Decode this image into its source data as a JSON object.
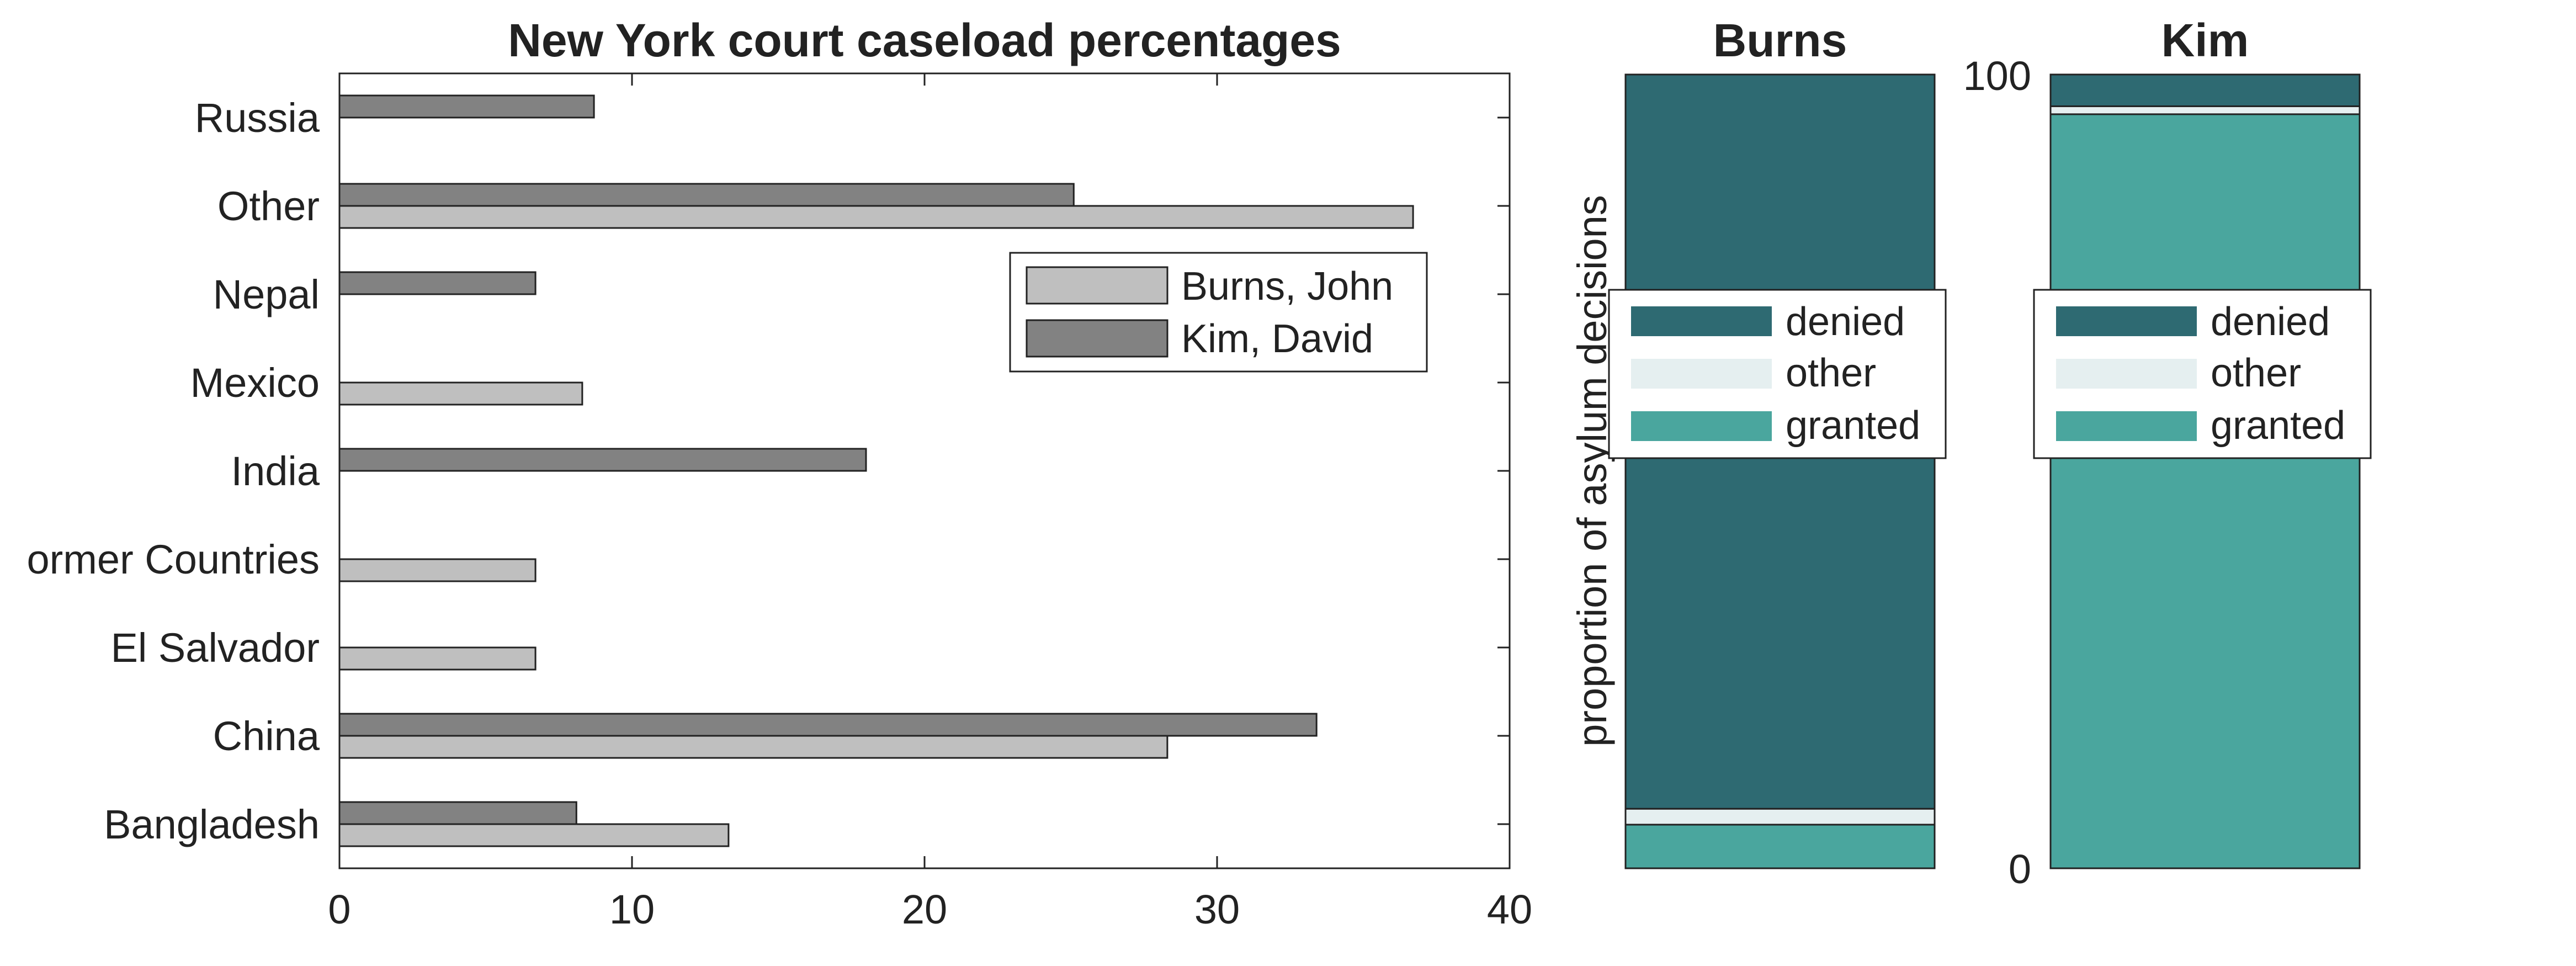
{
  "colors": {
    "burns": "#bfbfbf",
    "kim": "#828282",
    "denied": "#2e6a72",
    "other": "#e5eff0",
    "granted": "#4aa69e",
    "axis": "#222222"
  },
  "chart_data": [
    {
      "type": "bar",
      "orientation": "horizontal",
      "title": "New York court caseload percentages",
      "categories": [
        "Bangladesh",
        "China",
        "El Salvador",
        "Former Countries",
        "India",
        "Mexico",
        "Nepal",
        "Other",
        "Russia"
      ],
      "category_tick_labels": [
        "Bangladesh",
        "China",
        "El Salvador",
        "ormer Countries",
        "India",
        "Mexico",
        "Nepal",
        "Other",
        "Russia"
      ],
      "series": [
        {
          "name": "Burns, John",
          "values": [
            13.3,
            28.3,
            6.7,
            6.7,
            0,
            8.3,
            0,
            36.7,
            0
          ]
        },
        {
          "name": "Kim, David",
          "values": [
            8.1,
            33.4,
            0,
            0,
            18.0,
            0,
            6.7,
            25.1,
            8.7
          ]
        }
      ],
      "xlim": [
        0,
        40
      ],
      "xticks": [
        "0",
        "10",
        "20",
        "30",
        "40"
      ],
      "xlabel": "",
      "ylabel": "",
      "legend": {
        "position": "upper-right",
        "entries": [
          "Burns, John",
          "Kim, David"
        ]
      }
    },
    {
      "type": "bar",
      "stacked": true,
      "title": "Burns",
      "ylabel": "proportion of asylum decisions",
      "ylim": [
        0,
        100
      ],
      "segments": [
        {
          "name": "granted",
          "value": 5.5
        },
        {
          "name": "other",
          "value": 2.0
        },
        {
          "name": "denied",
          "value": 92.5
        }
      ],
      "legend": {
        "position": "middle",
        "entries": [
          "denied",
          "other",
          "granted"
        ]
      }
    },
    {
      "type": "bar",
      "stacked": true,
      "title": "Kim",
      "ylim": [
        0,
        100
      ],
      "yticks": [
        "0",
        "100"
      ],
      "segments": [
        {
          "name": "granted",
          "value": 95.0
        },
        {
          "name": "other",
          "value": 1.0
        },
        {
          "name": "denied",
          "value": 4.0
        }
      ],
      "legend": {
        "position": "middle",
        "entries": [
          "denied",
          "other",
          "granted"
        ]
      }
    }
  ]
}
